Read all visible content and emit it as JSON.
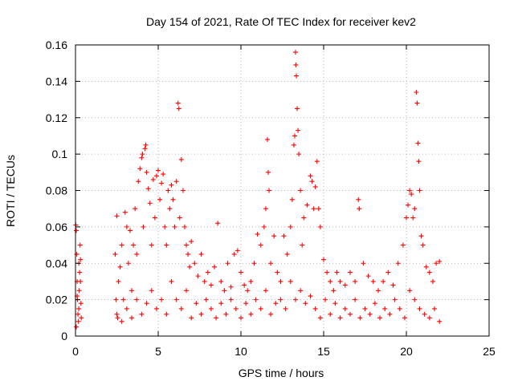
{
  "chart_data": {
    "type": "scatter",
    "title": "Day 154 of 2021, Rate Of TEC Index for receiver kev2",
    "xlabel": "GPS time / hours",
    "ylabel": "ROTI / TECUs",
    "xlim": [
      0,
      25
    ],
    "ylim": [
      0,
      0.16
    ],
    "x_ticks": [
      0,
      5,
      10,
      15,
      20,
      25
    ],
    "y_ticks": [
      0,
      0.02,
      0.04,
      0.06,
      0.08,
      0.1,
      0.12,
      0.14,
      0.16
    ],
    "x_tick_labels": [
      "0",
      "5",
      "10",
      "15",
      "20",
      "25"
    ],
    "y_tick_labels": [
      "0",
      "0.02",
      "0.04",
      "0.06",
      "0.08",
      "0.1",
      "0.12",
      "0.14",
      "0.16"
    ],
    "grid": true,
    "marker": "+",
    "color": "#ff0000",
    "points": [
      [
        0.02,
        0.061
      ],
      [
        0.05,
        0.058
      ],
      [
        0.08,
        0.045
      ],
      [
        0.1,
        0.03
      ],
      [
        0.12,
        0.02
      ],
      [
        0.15,
        0.012
      ],
      [
        0.18,
        0.008
      ],
      [
        0.2,
        0.015
      ],
      [
        0.22,
        0.025
      ],
      [
        0.25,
        0.035
      ],
      [
        0.28,
        0.05
      ],
      [
        0.3,
        0.042
      ],
      [
        0.33,
        0.018
      ],
      [
        0.35,
        0.01
      ],
      [
        0.05,
        0.005
      ],
      [
        0.1,
        0.022
      ],
      [
        0.2,
        0.04
      ],
      [
        0.3,
        0.03
      ],
      [
        2.4,
        0.045
      ],
      [
        2.45,
        0.02
      ],
      [
        2.5,
        0.066
      ],
      [
        2.55,
        0.01
      ],
      [
        2.6,
        0.03
      ],
      [
        2.7,
        0.038
      ],
      [
        2.8,
        0.05
      ],
      [
        2.9,
        0.02
      ],
      [
        3.0,
        0.068
      ],
      [
        3.1,
        0.06
      ],
      [
        3.2,
        0.04
      ],
      [
        3.3,
        0.058
      ],
      [
        3.4,
        0.025
      ],
      [
        3.5,
        0.05
      ],
      [
        3.6,
        0.07
      ],
      [
        3.7,
        0.045
      ],
      [
        3.8,
        0.085
      ],
      [
        3.9,
        0.092
      ],
      [
        4.0,
        0.098
      ],
      [
        4.05,
        0.1
      ],
      [
        4.1,
        0.06
      ],
      [
        4.2,
        0.103
      ],
      [
        4.25,
        0.105
      ],
      [
        4.3,
        0.09
      ],
      [
        4.4,
        0.081
      ],
      [
        4.5,
        0.073
      ],
      [
        4.6,
        0.05
      ],
      [
        4.7,
        0.086
      ],
      [
        4.8,
        0.065
      ],
      [
        4.9,
        0.088
      ],
      [
        5.0,
        0.091
      ],
      [
        5.1,
        0.075
      ],
      [
        5.2,
        0.084
      ],
      [
        5.3,
        0.089
      ],
      [
        5.4,
        0.06
      ],
      [
        5.5,
        0.05
      ],
      [
        5.6,
        0.08
      ],
      [
        5.7,
        0.07
      ],
      [
        5.8,
        0.083
      ],
      [
        5.9,
        0.075
      ],
      [
        6.0,
        0.06
      ],
      [
        6.1,
        0.085
      ],
      [
        6.2,
        0.128
      ],
      [
        6.25,
        0.125
      ],
      [
        6.3,
        0.065
      ],
      [
        6.4,
        0.097
      ],
      [
        6.5,
        0.08
      ],
      [
        6.6,
        0.06
      ],
      [
        6.7,
        0.05
      ],
      [
        6.8,
        0.045
      ],
      [
        6.9,
        0.038
      ],
      [
        7.0,
        0.052
      ],
      [
        7.2,
        0.04
      ],
      [
        7.4,
        0.033
      ],
      [
        7.6,
        0.045
      ],
      [
        7.8,
        0.03
      ],
      [
        8.0,
        0.035
      ],
      [
        8.2,
        0.028
      ],
      [
        8.4,
        0.038
      ],
      [
        8.6,
        0.062
      ],
      [
        8.8,
        0.03
      ],
      [
        9.0,
        0.025
      ],
      [
        9.2,
        0.04
      ],
      [
        9.4,
        0.027
      ],
      [
        9.6,
        0.045
      ],
      [
        9.8,
        0.047
      ],
      [
        10.0,
        0.035
      ],
      [
        10.2,
        0.028
      ],
      [
        10.4,
        0.025
      ],
      [
        10.6,
        0.03
      ],
      [
        10.8,
        0.04
      ],
      [
        11.0,
        0.056
      ],
      [
        11.2,
        0.05
      ],
      [
        11.4,
        0.06
      ],
      [
        11.5,
        0.07
      ],
      [
        11.6,
        0.108
      ],
      [
        11.65,
        0.09
      ],
      [
        11.7,
        0.08
      ],
      [
        11.8,
        0.04
      ],
      [
        12.0,
        0.055
      ],
      [
        12.2,
        0.035
      ],
      [
        12.4,
        0.03
      ],
      [
        12.6,
        0.055
      ],
      [
        12.8,
        0.045
      ],
      [
        13.0,
        0.06
      ],
      [
        13.1,
        0.075
      ],
      [
        13.2,
        0.105
      ],
      [
        13.25,
        0.11
      ],
      [
        13.3,
        0.156
      ],
      [
        13.32,
        0.149
      ],
      [
        13.35,
        0.143
      ],
      [
        13.4,
        0.125
      ],
      [
        13.45,
        0.113
      ],
      [
        13.5,
        0.1
      ],
      [
        13.6,
        0.08
      ],
      [
        13.7,
        0.05
      ],
      [
        13.8,
        0.065
      ],
      [
        14.0,
        0.072
      ],
      [
        14.2,
        0.088
      ],
      [
        14.3,
        0.085
      ],
      [
        14.4,
        0.07
      ],
      [
        14.5,
        0.082
      ],
      [
        14.6,
        0.096
      ],
      [
        14.7,
        0.07
      ],
      [
        14.8,
        0.06
      ],
      [
        15.0,
        0.042
      ],
      [
        15.2,
        0.035
      ],
      [
        15.4,
        0.03
      ],
      [
        15.6,
        0.025
      ],
      [
        15.8,
        0.035
      ],
      [
        16.0,
        0.03
      ],
      [
        16.3,
        0.028
      ],
      [
        16.6,
        0.035
      ],
      [
        16.9,
        0.03
      ],
      [
        17.1,
        0.075
      ],
      [
        17.15,
        0.07
      ],
      [
        17.4,
        0.04
      ],
      [
        17.7,
        0.033
      ],
      [
        18.0,
        0.03
      ],
      [
        18.3,
        0.025
      ],
      [
        18.6,
        0.03
      ],
      [
        18.9,
        0.035
      ],
      [
        19.2,
        0.028
      ],
      [
        19.5,
        0.04
      ],
      [
        19.8,
        0.05
      ],
      [
        20.0,
        0.065
      ],
      [
        20.1,
        0.072
      ],
      [
        20.2,
        0.08
      ],
      [
        20.3,
        0.078
      ],
      [
        20.4,
        0.065
      ],
      [
        20.5,
        0.07
      ],
      [
        20.6,
        0.134
      ],
      [
        20.65,
        0.128
      ],
      [
        20.7,
        0.106
      ],
      [
        20.75,
        0.096
      ],
      [
        20.8,
        0.08
      ],
      [
        20.9,
        0.055
      ],
      [
        21.0,
        0.05
      ],
      [
        21.2,
        0.038
      ],
      [
        21.4,
        0.035
      ],
      [
        21.6,
        0.03
      ],
      [
        21.8,
        0.04
      ],
      [
        22.0,
        0.041
      ],
      [
        2.5,
        0.012
      ],
      [
        2.8,
        0.008
      ],
      [
        3.1,
        0.015
      ],
      [
        3.4,
        0.01
      ],
      [
        3.7,
        0.02
      ],
      [
        4.0,
        0.012
      ],
      [
        4.3,
        0.018
      ],
      [
        4.6,
        0.025
      ],
      [
        4.9,
        0.015
      ],
      [
        5.2,
        0.02
      ],
      [
        5.5,
        0.012
      ],
      [
        5.8,
        0.03
      ],
      [
        6.1,
        0.02
      ],
      [
        6.4,
        0.015
      ],
      [
        6.7,
        0.025
      ],
      [
        7.0,
        0.01
      ],
      [
        7.3,
        0.018
      ],
      [
        7.6,
        0.012
      ],
      [
        7.9,
        0.02
      ],
      [
        8.2,
        0.015
      ],
      [
        8.5,
        0.01
      ],
      [
        8.8,
        0.018
      ],
      [
        9.1,
        0.012
      ],
      [
        9.4,
        0.02
      ],
      [
        9.7,
        0.015
      ],
      [
        10.0,
        0.01
      ],
      [
        10.3,
        0.018
      ],
      [
        10.6,
        0.012
      ],
      [
        10.9,
        0.02
      ],
      [
        11.2,
        0.015
      ],
      [
        11.5,
        0.025
      ],
      [
        11.8,
        0.012
      ],
      [
        12.1,
        0.018
      ],
      [
        12.4,
        0.02
      ],
      [
        12.7,
        0.015
      ],
      [
        13.0,
        0.03
      ],
      [
        13.3,
        0.02
      ],
      [
        13.6,
        0.025
      ],
      [
        13.9,
        0.018
      ],
      [
        14.2,
        0.022
      ],
      [
        14.5,
        0.015
      ],
      [
        14.8,
        0.01
      ],
      [
        15.1,
        0.02
      ],
      [
        15.4,
        0.012
      ],
      [
        15.7,
        0.018
      ],
      [
        16.0,
        0.01
      ],
      [
        16.3,
        0.015
      ],
      [
        16.6,
        0.012
      ],
      [
        16.9,
        0.02
      ],
      [
        17.2,
        0.01
      ],
      [
        17.5,
        0.015
      ],
      [
        17.8,
        0.012
      ],
      [
        18.1,
        0.018
      ],
      [
        18.4,
        0.01
      ],
      [
        18.7,
        0.015
      ],
      [
        19.0,
        0.012
      ],
      [
        19.3,
        0.02
      ],
      [
        19.6,
        0.015
      ],
      [
        19.9,
        0.01
      ],
      [
        20.2,
        0.025
      ],
      [
        20.5,
        0.02
      ],
      [
        20.8,
        0.015
      ],
      [
        21.1,
        0.012
      ],
      [
        21.4,
        0.01
      ],
      [
        21.7,
        0.015
      ],
      [
        22.0,
        0.008
      ]
    ]
  }
}
